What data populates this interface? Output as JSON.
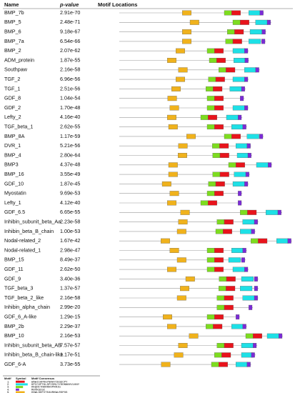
{
  "header": {
    "name": "Name",
    "pvalue": "p-value",
    "locations": "Motif Locations"
  },
  "scale": 0.6,
  "legend": {
    "header": {
      "motif": "Motif",
      "symbol": "Symbol",
      "consensus": "Motif Consensus"
    },
    "motifs": [
      {
        "label": "1.",
        "color": "#e8141c",
        "consensus": "WSWIIAPKGYNAHYCEGECPY"
      },
      {
        "label": "2.",
        "color": "#1ee0e6",
        "consensus": "KPCCVPTKLSPISMLYYDDNNNVVLKNY"
      },
      {
        "label": "3.",
        "color": "#7ddc1f",
        "consensus": "KKQNCTNKRRHVPRRIG"
      },
      {
        "label": "4.",
        "color": "#7b2bd6",
        "consensus": "MVVKSCGC"
      },
      {
        "label": "5.",
        "color": "#f0b21c",
        "consensus": "DGWLSDFVTEAVRKWLRSPQS"
      }
    ]
  },
  "rows": [
    {
      "name": "BMP_7b",
      "pvalue": "2.91e-70",
      "length": 338,
      "sites": [
        [
          5,
          147
        ],
        [
          3,
          245
        ],
        [
          1,
          262
        ],
        [
          2,
          302
        ],
        [
          4,
          328
        ]
      ]
    },
    {
      "name": "BMP_5",
      "pvalue": "2.48e-71",
      "length": 355,
      "sites": [
        [
          5,
          165
        ],
        [
          3,
          265
        ],
        [
          1,
          282
        ],
        [
          2,
          318
        ],
        [
          4,
          345
        ]
      ]
    },
    {
      "name": "BMP_6",
      "pvalue": "9.18e-67",
      "length": 343,
      "sites": [
        [
          5,
          147
        ],
        [
          3,
          252
        ],
        [
          1,
          269
        ],
        [
          2,
          305
        ],
        [
          4,
          333
        ]
      ]
    },
    {
      "name": "BMP_7a",
      "pvalue": "6.54e-66",
      "length": 342,
      "sites": [
        [
          5,
          147
        ],
        [
          3,
          248
        ],
        [
          1,
          265
        ],
        [
          2,
          302
        ],
        [
          4,
          332
        ]
      ]
    },
    {
      "name": "BMP_2",
      "pvalue": "2.07e-62",
      "length": 302,
      "sites": [
        [
          5,
          132
        ],
        [
          3,
          205
        ],
        [
          1,
          222
        ],
        [
          2,
          265
        ],
        [
          4,
          292
        ]
      ]
    },
    {
      "name": "ADM_protein",
      "pvalue": "1.87e-55",
      "length": 303,
      "sites": [
        [
          5,
          112
        ],
        [
          3,
          210
        ],
        [
          1,
          227
        ],
        [
          2,
          267
        ],
        [
          4,
          293
        ]
      ]
    },
    {
      "name": "Southpaw",
      "pvalue": "2.16e-58",
      "length": 328,
      "sites": [
        [
          5,
          138
        ],
        [
          3,
          232
        ],
        [
          1,
          249
        ],
        [
          2,
          292
        ],
        [
          4,
          318
        ]
      ]
    },
    {
      "name": "TGF_2",
      "pvalue": "6.96e-56",
      "length": 302,
      "sites": [
        [
          5,
          132
        ],
        [
          3,
          208
        ],
        [
          1,
          225
        ],
        [
          2,
          265
        ],
        [
          4,
          292
        ]
      ]
    },
    {
      "name": "TGF_1",
      "pvalue": "2.51e-56",
      "length": 295,
      "sites": [
        [
          5,
          122
        ],
        [
          3,
          202
        ],
        [
          1,
          219
        ],
        [
          2,
          258
        ],
        [
          4,
          285
        ]
      ]
    },
    {
      "name": "GDF_8",
      "pvalue": "1.04e-54",
      "length": 292,
      "sites": [
        [
          5,
          113
        ],
        [
          3,
          205
        ],
        [
          1,
          222
        ],
        [
          4,
          282
        ]
      ]
    },
    {
      "name": "GDF_2",
      "pvalue": "1.70e-48",
      "length": 302,
      "sites": [
        [
          5,
          118
        ],
        [
          3,
          205
        ],
        [
          1,
          222
        ],
        [
          2,
          265
        ],
        [
          4,
          292
        ]
      ]
    },
    {
      "name": "Lefty_2",
      "pvalue": "4.16e-40",
      "length": 287,
      "sites": [
        [
          5,
          112
        ],
        [
          3,
          190
        ],
        [
          1,
          207
        ],
        [
          2,
          250
        ],
        [
          4,
          277
        ]
      ]
    },
    {
      "name": "TGF_beta_1",
      "pvalue": "2.62e-55",
      "length": 298,
      "sites": [
        [
          5,
          115
        ],
        [
          3,
          205
        ],
        [
          1,
          222
        ],
        [
          2,
          262
        ],
        [
          4,
          288
        ]
      ]
    },
    {
      "name": "BMP_8A",
      "pvalue": "1.17e-59",
      "length": 337,
      "sites": [
        [
          5,
          157
        ],
        [
          3,
          245
        ],
        [
          1,
          262
        ],
        [
          2,
          298
        ],
        [
          4,
          327
        ]
      ]
    },
    {
      "name": "DVR_1",
      "pvalue": "5.21e-56",
      "length": 308,
      "sites": [
        [
          5,
          138
        ],
        [
          3,
          217
        ],
        [
          1,
          234
        ],
        [
          2,
          272
        ],
        [
          4,
          298
        ]
      ]
    },
    {
      "name": "BMP_4",
      "pvalue": "2.80e-64",
      "length": 310,
      "sites": [
        [
          5,
          137
        ],
        [
          3,
          218
        ],
        [
          1,
          235
        ],
        [
          2,
          275
        ],
        [
          4,
          300
        ]
      ]
    },
    {
      "name": "BMP3",
      "pvalue": "4.37e-48",
      "length": 357,
      "sites": [
        [
          5,
          115
        ],
        [
          3,
          255
        ],
        [
          1,
          272
        ],
        [
          2,
          320
        ],
        [
          4,
          347
        ]
      ]
    },
    {
      "name": "BMP_16",
      "pvalue": "3.55e-49",
      "length": 305,
      "sites": [
        [
          5,
          115
        ],
        [
          3,
          218
        ],
        [
          1,
          235
        ],
        [
          2,
          268
        ],
        [
          4,
          295
        ]
      ]
    },
    {
      "name": "GDF_10",
      "pvalue": "1.87e-45",
      "length": 302,
      "sites": [
        [
          5,
          100
        ],
        [
          3,
          208
        ],
        [
          1,
          225
        ],
        [
          2,
          265
        ],
        [
          4,
          292
        ]
      ]
    },
    {
      "name": "Myostatin",
      "pvalue": "9.69e-53",
      "length": 287,
      "sites": [
        [
          5,
          118
        ],
        [
          3,
          205
        ],
        [
          1,
          222
        ],
        [
          4,
          277
        ]
      ]
    },
    {
      "name": "Lefty_1",
      "pvalue": "4.12e-40",
      "length": 287,
      "sites": [
        [
          5,
          112
        ],
        [
          3,
          190
        ],
        [
          1,
          207
        ],
        [
          4,
          277
        ]
      ]
    },
    {
      "name": "GDF_6.5",
      "pvalue": "6.65e-55",
      "length": 380,
      "sites": [
        [
          5,
          143
        ],
        [
          3,
          282
        ],
        [
          1,
          299
        ],
        [
          2,
          342
        ],
        [
          4,
          370
        ]
      ]
    },
    {
      "name": "Inhibin_subunit_beta_Aa",
      "pvalue": "2.23e-58",
      "length": 325,
      "sites": [
        [
          5,
          138
        ],
        [
          3,
          228
        ],
        [
          1,
          245
        ],
        [
          2,
          288
        ],
        [
          4,
          315
        ]
      ]
    },
    {
      "name": "Inhibin_beta_B_chain",
      "pvalue": "1.00e-53",
      "length": 318,
      "sites": [
        [
          5,
          135
        ],
        [
          3,
          225
        ],
        [
          1,
          242
        ],
        [
          2,
          282
        ],
        [
          4,
          308
        ]
      ]
    },
    {
      "name": "Nodal-related_2",
      "pvalue": "1.67e-42",
      "length": 403,
      "sites": [
        [
          5,
          97
        ],
        [
          3,
          307
        ],
        [
          1,
          324
        ],
        [
          2,
          367
        ],
        [
          4,
          393
        ]
      ]
    },
    {
      "name": "Nodal-related_1",
      "pvalue": "2.98e-47",
      "length": 298,
      "sites": [
        [
          5,
          118
        ],
        [
          3,
          205
        ],
        [
          1,
          222
        ],
        [
          2,
          262
        ],
        [
          4,
          288
        ]
      ]
    },
    {
      "name": "BMP_15",
      "pvalue": "8.49e-37",
      "length": 295,
      "sites": [
        [
          5,
          135
        ],
        [
          3,
          205
        ],
        [
          1,
          222
        ],
        [
          2,
          255
        ],
        [
          4,
          285
        ]
      ]
    },
    {
      "name": "GDF_11",
      "pvalue": "2.62e-50",
      "length": 302,
      "sites": [
        [
          5,
          112
        ],
        [
          3,
          205
        ],
        [
          1,
          222
        ],
        [
          2,
          265
        ],
        [
          4,
          292
        ]
      ]
    },
    {
      "name": "GDF_9",
      "pvalue": "3.40e-36",
      "length": 325,
      "sites": [
        [
          5,
          155
        ],
        [
          3,
          233
        ],
        [
          1,
          250
        ],
        [
          2,
          285
        ],
        [
          4,
          315
        ]
      ]
    },
    {
      "name": "TGF_beta_3",
      "pvalue": "1.37e-57",
      "length": 325,
      "sites": [
        [
          5,
          142
        ],
        [
          3,
          232
        ],
        [
          1,
          249
        ],
        [
          2,
          282
        ],
        [
          4,
          315
        ]
      ]
    },
    {
      "name": "TGF_beta_2_like",
      "pvalue": "2.16e-58",
      "length": 325,
      "sites": [
        [
          5,
          135
        ],
        [
          3,
          228
        ],
        [
          1,
          245
        ],
        [
          2,
          288
        ],
        [
          4,
          315
        ]
      ]
    },
    {
      "name": "Inhibin_alpha_chain",
      "pvalue": "2.99e-20",
      "length": 312,
      "sites": [
        [
          3,
          228
        ],
        [
          1,
          245
        ],
        [
          4,
          302
        ]
      ]
    },
    {
      "name": "GDF_6_A-like",
      "pvalue": "1.29e-15",
      "length": 282,
      "sites": [
        [
          5,
          102
        ],
        [
          3,
          205
        ],
        [
          1,
          222
        ],
        [
          4,
          272
        ]
      ]
    },
    {
      "name": "BMP_2b",
      "pvalue": "2.29e-37",
      "length": 298,
      "sites": [
        [
          5,
          112
        ],
        [
          3,
          202
        ],
        [
          1,
          219
        ],
        [
          2,
          262
        ],
        [
          4,
          288
        ]
      ]
    },
    {
      "name": "BMP_10",
      "pvalue": "2.16e-53",
      "length": 382,
      "sites": [
        [
          5,
          163
        ],
        [
          3,
          295
        ],
        [
          1,
          312
        ],
        [
          2,
          345
        ],
        [
          4,
          372
        ]
      ]
    },
    {
      "name": "Inhibin_subunit_beta_AB",
      "pvalue": "7.57e-57",
      "length": 322,
      "sites": [
        [
          5,
          138
        ],
        [
          3,
          228
        ],
        [
          1,
          245
        ],
        [
          2,
          285
        ],
        [
          4,
          312
        ]
      ]
    },
    {
      "name": "Inhibin_beta_B_chain-like",
      "pvalue": "1.17e-51",
      "length": 318,
      "sites": [
        [
          5,
          128
        ],
        [
          3,
          222
        ],
        [
          1,
          239
        ],
        [
          2,
          285
        ],
        [
          4,
          308
        ]
      ]
    },
    {
      "name": "GDF_6-A",
      "pvalue": "3.73e-55",
      "length": 308,
      "sites": [
        [
          5,
          98
        ],
        [
          3,
          215
        ],
        [
          1,
          232
        ],
        [
          2,
          272
        ],
        [
          4,
          298
        ]
      ]
    }
  ]
}
